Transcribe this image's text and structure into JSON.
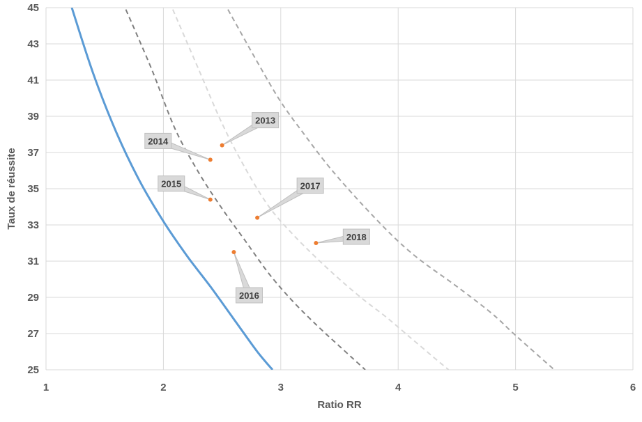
{
  "chart_data": {
    "type": "scatter",
    "xlabel": "Ratio RR",
    "ylabel": "Taux de réussite",
    "xlim": [
      1,
      6
    ],
    "ylim": [
      25,
      45
    ],
    "xticks": [
      1,
      2,
      3,
      4,
      5,
      6
    ],
    "yticks": [
      25,
      27,
      29,
      31,
      33,
      35,
      37,
      39,
      41,
      43,
      45
    ],
    "grid": true,
    "legend": "none",
    "points_color": "#ED7D31",
    "points": [
      {
        "label": "2013",
        "x": 2.5,
        "y": 37.4
      },
      {
        "label": "2014",
        "x": 2.4,
        "y": 36.6
      },
      {
        "label": "2015",
        "x": 2.4,
        "y": 34.4
      },
      {
        "label": "2016",
        "x": 2.6,
        "y": 31.5
      },
      {
        "label": "2017",
        "x": 2.8,
        "y": 33.4
      },
      {
        "label": "2018",
        "x": 3.3,
        "y": 32.0
      }
    ],
    "curves": [
      {
        "style": "solid",
        "color": "#5B9BD5",
        "x": [
          1.22,
          1.4,
          1.6,
          1.8,
          2.0,
          2.2,
          2.4,
          2.6,
          2.8,
          2.93
        ],
        "y": [
          45.0,
          41.4,
          38.1,
          35.4,
          33.2,
          31.3,
          29.6,
          27.8,
          26.0,
          25.0
        ]
      },
      {
        "style": "dashed",
        "color": "#808080",
        "x": [
          1.68,
          1.9,
          2.1,
          2.3,
          2.5,
          2.7,
          2.9,
          3.1,
          3.3,
          3.5,
          3.72
        ],
        "y": [
          44.9,
          41.6,
          38.3,
          35.9,
          33.9,
          32.1,
          30.3,
          28.8,
          27.5,
          26.3,
          25.0
        ]
      },
      {
        "style": "dashed",
        "color": "#D9D9D9",
        "x": [
          2.08,
          2.3,
          2.5,
          2.7,
          2.9,
          3.1,
          3.3,
          3.5,
          3.7,
          3.9,
          4.1,
          4.3,
          4.43
        ],
        "y": [
          44.9,
          41.6,
          38.6,
          36.1,
          34.0,
          32.5,
          31.2,
          30.0,
          28.9,
          27.9,
          26.8,
          25.7,
          25.0
        ]
      },
      {
        "style": "dashed",
        "color": "#A6A6A6",
        "x": [
          2.55,
          2.8,
          3.0,
          3.2,
          3.4,
          3.6,
          3.8,
          4.0,
          4.2,
          4.5,
          4.8,
          5.0,
          5.33
        ],
        "y": [
          44.9,
          42.0,
          39.8,
          38.0,
          36.3,
          34.8,
          33.4,
          32.1,
          31.0,
          29.6,
          28.1,
          26.9,
          25.0
        ]
      }
    ]
  },
  "colors": {
    "grid": "#D9D9D9",
    "callout_fill": "#D9D9D9",
    "callout_stroke": "#BFBFBF"
  }
}
